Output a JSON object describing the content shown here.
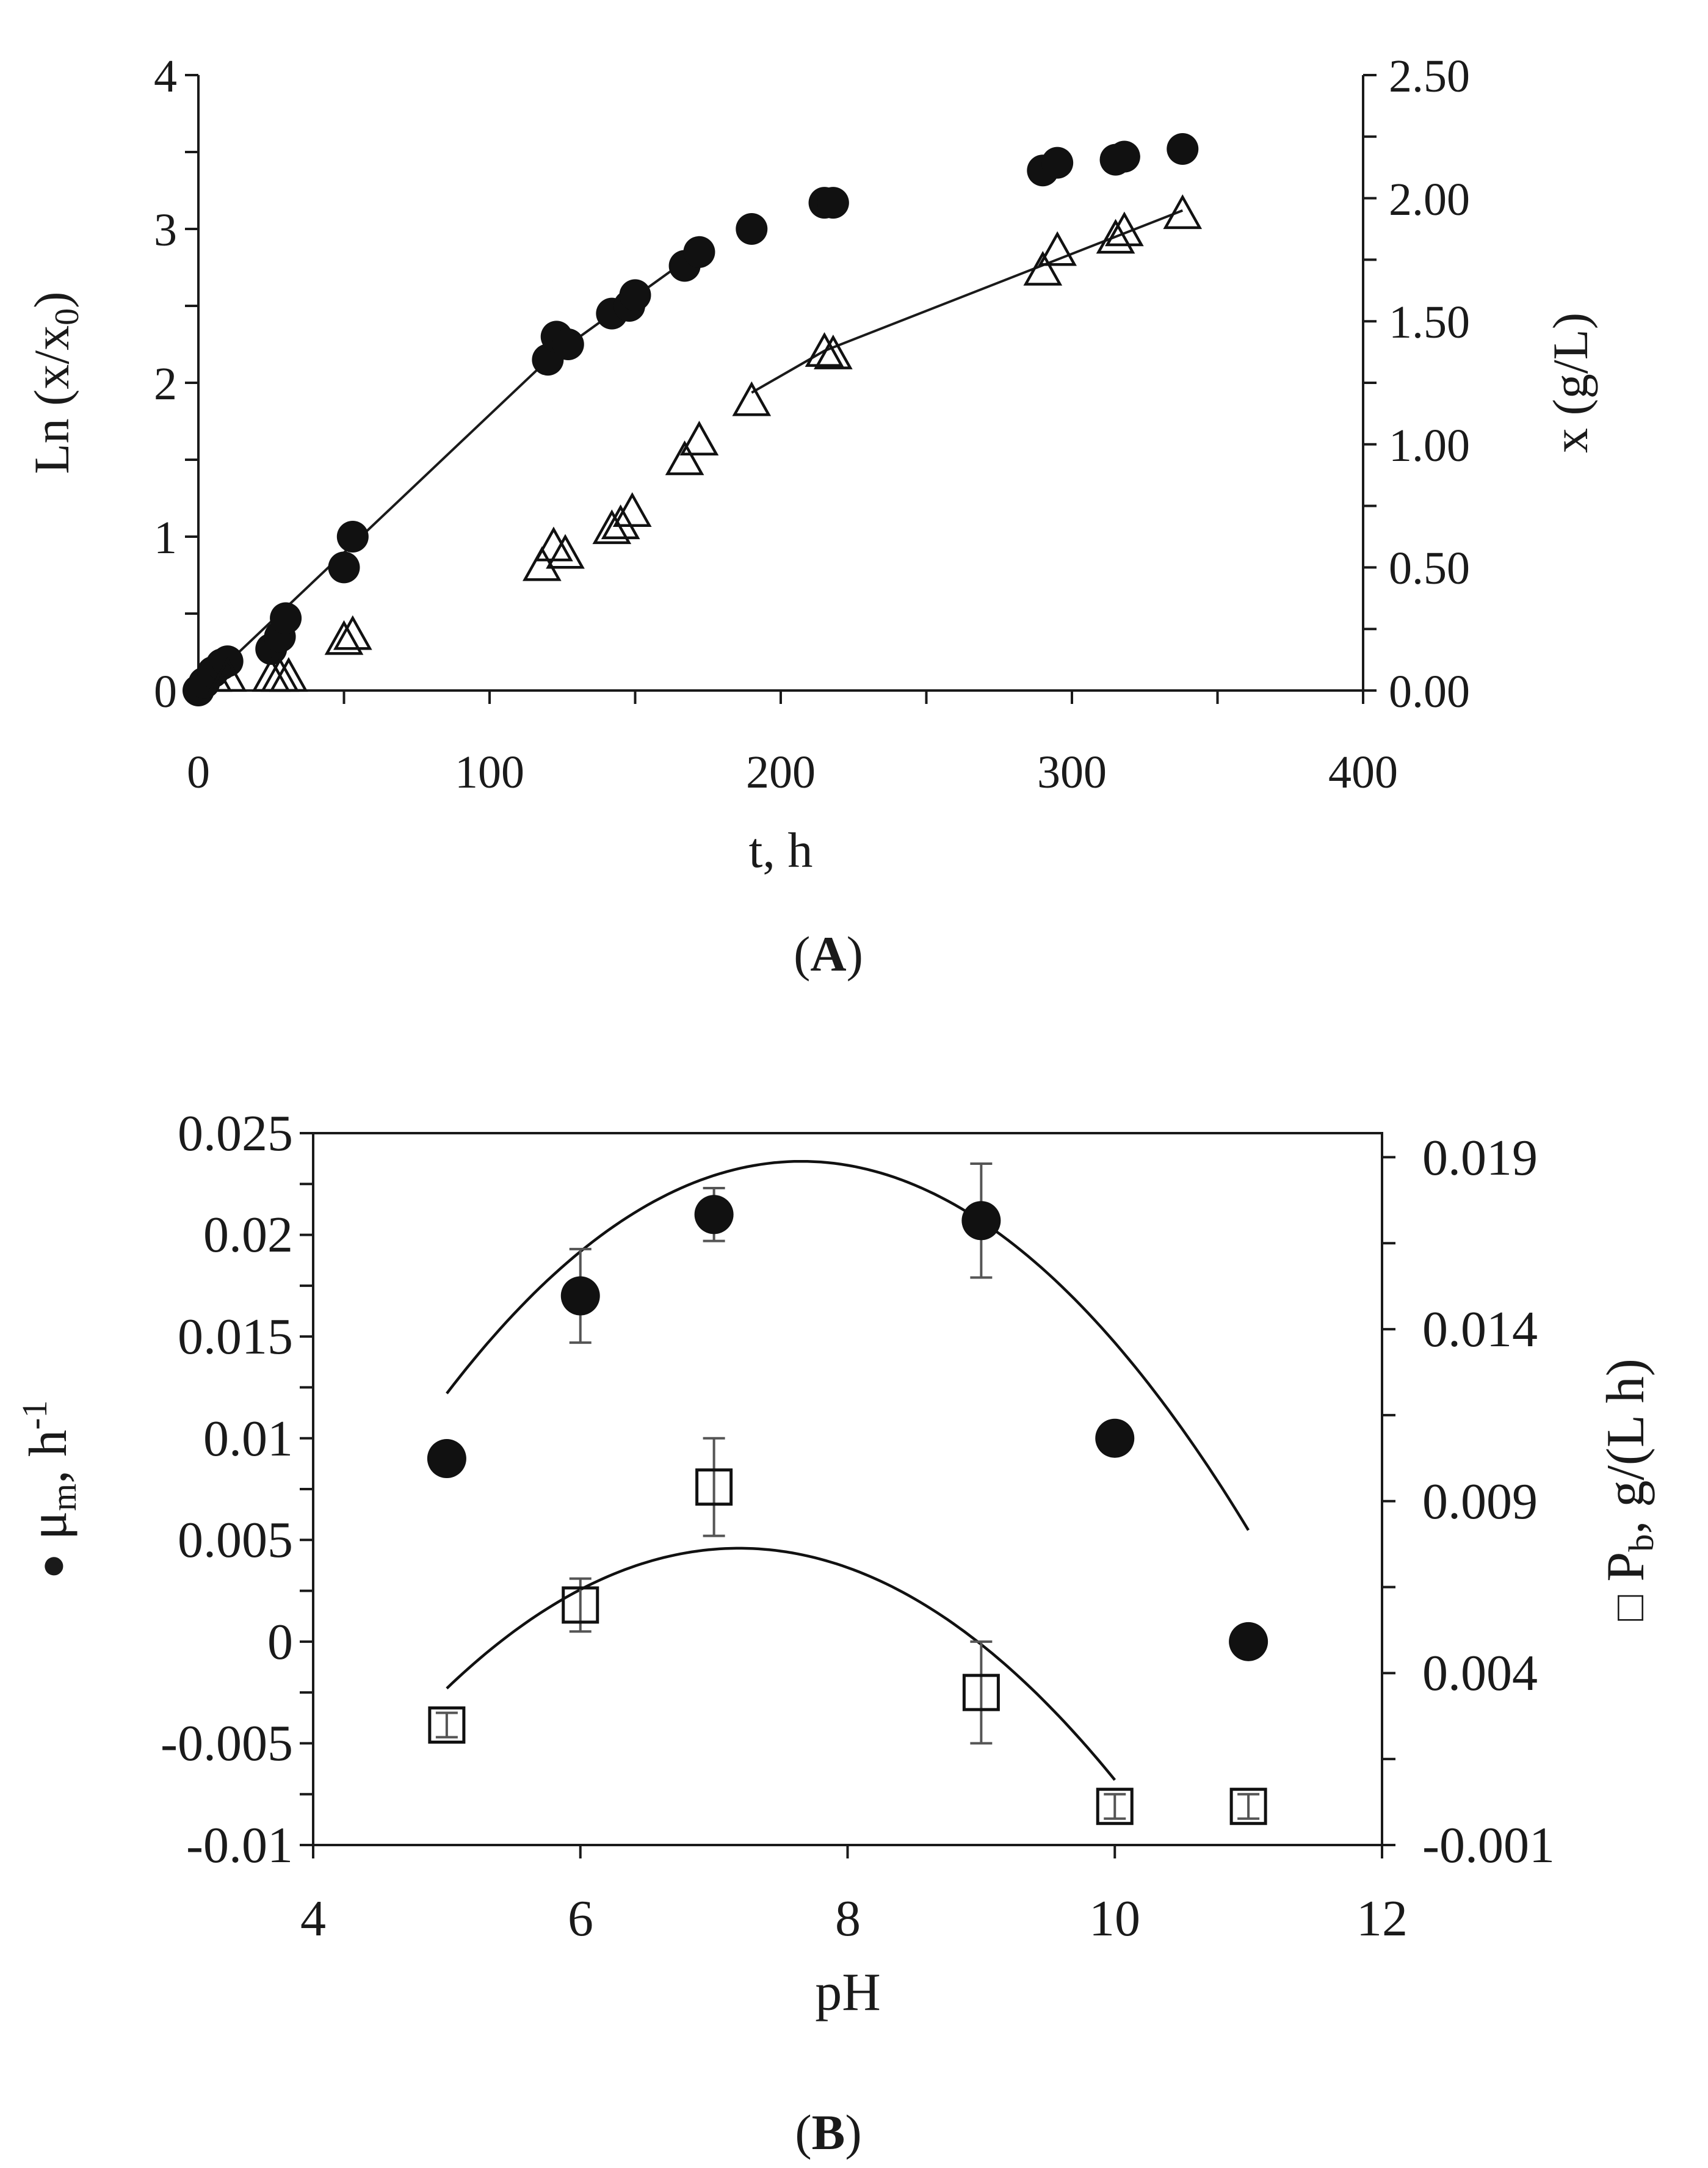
{
  "chart_data": [
    {
      "panel": "A",
      "type": "scatter",
      "caption_letter": "A",
      "xlabel": "t, h",
      "ylabel_left_main": "Ln (x/x",
      "ylabel_left_sub": "0",
      "ylabel_left_end": ")",
      "ylabel_right": "x (g/L)",
      "xlim": [
        0,
        400
      ],
      "ylim_left": [
        0,
        4
      ],
      "ylim_right": [
        0,
        2.5
      ],
      "x_ticks": [
        "0",
        "100",
        "200",
        "300",
        "400"
      ],
      "y_left_ticks": [
        "0",
        "1",
        "2",
        "3",
        "4"
      ],
      "y_right_ticks": [
        "0.00",
        "0.50",
        "1.00",
        "1.50",
        "2.00",
        "2.50"
      ],
      "series": [
        {
          "name": "Ln (x/x0)",
          "axis": "left",
          "marker": "filled-circle",
          "x": [
            0,
            2,
            5,
            8,
            10,
            25,
            28,
            30,
            50,
            53,
            120,
            123,
            127,
            142,
            148,
            150,
            167,
            172,
            190,
            215,
            218,
            290,
            295,
            315,
            318,
            338
          ],
          "y": [
            0,
            0.05,
            0.12,
            0.17,
            0.19,
            0.27,
            0.35,
            0.47,
            0.8,
            1.0,
            2.15,
            2.3,
            2.25,
            2.45,
            2.5,
            2.57,
            2.76,
            2.85,
            3.0,
            3.17,
            3.17,
            3.38,
            3.43,
            3.45,
            3.47,
            3.52
          ]
        },
        {
          "name": "x (g/L)",
          "axis": "right",
          "marker": "open-triangle",
          "x": [
            5,
            10,
            25,
            28,
            31,
            50,
            53,
            118,
            122,
            126,
            142,
            145,
            149,
            167,
            172,
            190,
            215,
            218,
            290,
            295,
            315,
            318,
            338
          ],
          "y": [
            0.05,
            0.05,
            0.05,
            0.05,
            0.05,
            0.2,
            0.22,
            0.5,
            0.58,
            0.55,
            0.65,
            0.67,
            0.72,
            0.93,
            1.01,
            1.17,
            1.37,
            1.36,
            1.7,
            1.78,
            1.83,
            1.86,
            1.93
          ]
        }
      ],
      "fit_lines": [
        {
          "series": "Ln (x/x0)",
          "x": [
            0,
            120,
            175
          ],
          "y": [
            0,
            2.15,
            2.9
          ]
        },
        {
          "series": "x (g/L)",
          "x": [
            190,
            215,
            338
          ],
          "y": [
            1.21,
            1.38,
            1.95
          ]
        }
      ]
    },
    {
      "panel": "B",
      "type": "scatter",
      "caption_letter": "B",
      "xlabel": "pH",
      "ylabel_left_symbol": "●",
      "ylabel_left_main": "μ",
      "ylabel_left_sub": "m",
      "ylabel_left_mid": ", h",
      "ylabel_left_sup": "-1",
      "ylabel_right_symbol": "□",
      "ylabel_right_main": "P",
      "ylabel_right_sub": "b",
      "ylabel_right_end": ", g/(L h)",
      "xlim": [
        4,
        12
      ],
      "ylim_left": [
        -0.01,
        0.025
      ],
      "ylim_right": [
        -0.001,
        0.0197
      ],
      "x_ticks": [
        "4",
        "6",
        "8",
        "10",
        "12"
      ],
      "y_left_ticks": [
        "-0.01",
        "-0.005",
        "0",
        "0.005",
        "0.01",
        "0.015",
        "0.02",
        "0.025"
      ],
      "y_right_ticks": [
        "-0.001",
        "0.004",
        "0.009",
        "0.014",
        "0.019"
      ],
      "series": [
        {
          "name": "μm, h-1",
          "axis": "left",
          "marker": "filled-circle",
          "x": [
            5,
            6,
            7,
            9,
            10,
            11
          ],
          "y": [
            0.009,
            0.017,
            0.021,
            0.0207,
            0.01,
            0.0
          ],
          "err": [
            0,
            0.0023,
            0.0013,
            0.0028,
            0,
            0
          ]
        },
        {
          "name": "Pb, g/(L h)",
          "axis": "left",
          "marker": "open-square",
          "x": [
            5,
            6,
            7,
            9,
            10,
            11
          ],
          "y": [
            -0.0041,
            0.0018,
            0.0076,
            -0.0025,
            -0.0081,
            -0.0081
          ],
          "err": [
            0.0006,
            0.0013,
            0.0024,
            0.0025,
            0.0006,
            0.0006
          ]
        }
      ],
      "fit_curves": [
        {
          "series": "μm, h-1",
          "x_range": [
            5,
            11
          ],
          "coefficients": [
            -0.0713,
            0.0248,
            -0.00162
          ]
        },
        {
          "series": "Pb, g/(L h)",
          "x_range": [
            5,
            10
          ],
          "coefficients": [
            -0.0698,
            0.0207,
            -0.00144
          ]
        }
      ]
    }
  ]
}
